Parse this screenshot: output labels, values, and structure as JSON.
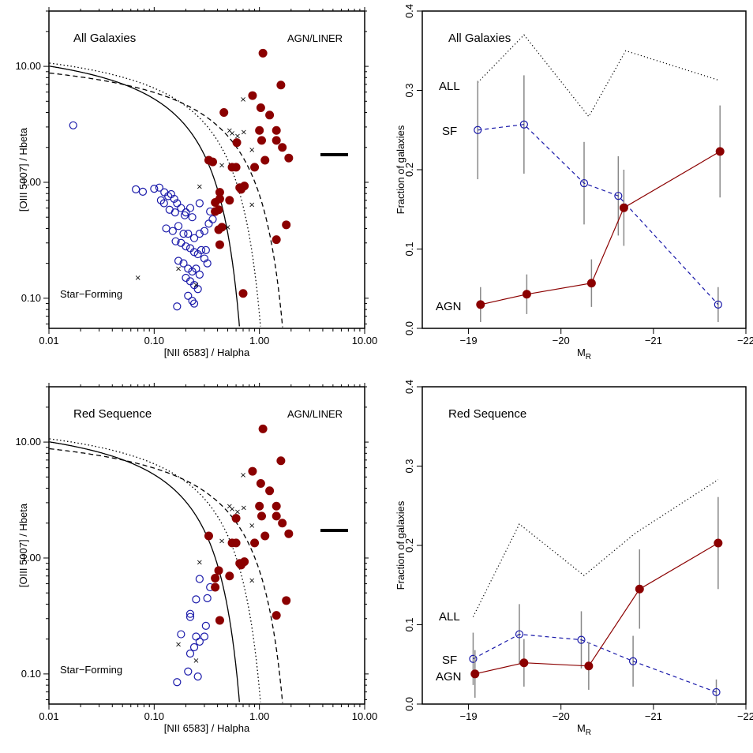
{
  "chart_data": [
    {
      "type": "scatter",
      "title": "All Galaxies",
      "xlabel": "[NII 6583] / Halpha",
      "ylabel": "[OIII 5007] / Hbeta",
      "xscale": "log",
      "yscale": "log",
      "xlim": [
        0.01,
        10
      ],
      "ylim": [
        0.055,
        30
      ],
      "xticks": [
        "0.01",
        "0.10",
        "1.00",
        "10.00"
      ],
      "yticks": [
        "0.10",
        "1.00",
        "10.00"
      ],
      "annotations": [
        "AGN/LINER",
        "Star−Forming"
      ],
      "series": [
        {
          "name": "SF",
          "marker": "open-circle",
          "color": "#1a1aaa",
          "points": [
            [
              0.017,
              3.1
            ],
            [
              0.067,
              0.87
            ],
            [
              0.078,
              0.83
            ],
            [
              0.1,
              0.88
            ],
            [
              0.112,
              0.9
            ],
            [
              0.125,
              0.82
            ],
            [
              0.136,
              0.76
            ],
            [
              0.116,
              0.7
            ],
            [
              0.124,
              0.66
            ],
            [
              0.145,
              0.79
            ],
            [
              0.155,
              0.72
            ],
            [
              0.165,
              0.66
            ],
            [
              0.14,
              0.58
            ],
            [
              0.158,
              0.55
            ],
            [
              0.18,
              0.6
            ],
            [
              0.2,
              0.55
            ],
            [
              0.23,
              0.5
            ],
            [
              0.22,
              0.6
            ],
            [
              0.195,
              0.52
            ],
            [
              0.13,
              0.4
            ],
            [
              0.15,
              0.38
            ],
            [
              0.17,
              0.42
            ],
            [
              0.19,
              0.36
            ],
            [
              0.21,
              0.36
            ],
            [
              0.24,
              0.33
            ],
            [
              0.27,
              0.36
            ],
            [
              0.3,
              0.38
            ],
            [
              0.33,
              0.44
            ],
            [
              0.36,
              0.48
            ],
            [
              0.16,
              0.31
            ],
            [
              0.18,
              0.3
            ],
            [
              0.2,
              0.28
            ],
            [
              0.22,
              0.27
            ],
            [
              0.24,
              0.25
            ],
            [
              0.26,
              0.24
            ],
            [
              0.28,
              0.26
            ],
            [
              0.31,
              0.26
            ],
            [
              0.34,
              0.56
            ],
            [
              0.27,
              0.66
            ],
            [
              0.17,
              0.21
            ],
            [
              0.19,
              0.2
            ],
            [
              0.21,
              0.18
            ],
            [
              0.23,
              0.17
            ],
            [
              0.25,
              0.18
            ],
            [
              0.27,
              0.16
            ],
            [
              0.2,
              0.15
            ],
            [
              0.22,
              0.14
            ],
            [
              0.24,
              0.13
            ],
            [
              0.26,
              0.12
            ],
            [
              0.21,
              0.105
            ],
            [
              0.23,
              0.095
            ],
            [
              0.24,
              0.09
            ],
            [
              0.165,
              0.085
            ],
            [
              0.3,
              0.22
            ],
            [
              0.32,
              0.2
            ]
          ]
        },
        {
          "name": "AGN",
          "marker": "filled-circle",
          "color": "#8b0000",
          "points": [
            [
              0.33,
              1.55
            ],
            [
              0.36,
              1.5
            ],
            [
              0.38,
              0.67
            ],
            [
              0.41,
              0.58
            ],
            [
              0.38,
              0.56
            ],
            [
              0.42,
              0.72
            ],
            [
              0.42,
              0.82
            ],
            [
              0.41,
              0.39
            ],
            [
              0.44,
              0.41
            ],
            [
              0.42,
              0.29
            ],
            [
              0.46,
              4.0
            ],
            [
              0.52,
              0.7
            ],
            [
              0.55,
              1.35
            ],
            [
              0.6,
              1.35
            ],
            [
              0.61,
              2.2
            ],
            [
              0.65,
              0.9
            ],
            [
              0.67,
              0.87
            ],
            [
              0.72,
              0.93
            ],
            [
              0.86,
              5.6
            ],
            [
              0.9,
              1.35
            ],
            [
              1.0,
              2.8
            ],
            [
              1.03,
              4.4
            ],
            [
              1.05,
              2.3
            ],
            [
              1.13,
              1.55
            ],
            [
              1.08,
              13.0
            ],
            [
              1.25,
              3.8
            ],
            [
              1.45,
              2.3
            ],
            [
              1.45,
              2.8
            ],
            [
              1.45,
              0.32
            ],
            [
              1.6,
              6.9
            ],
            [
              1.65,
              2.0
            ],
            [
              1.8,
              0.43
            ],
            [
              1.9,
              1.62
            ],
            [
              0.7,
              0.11
            ]
          ]
        },
        {
          "name": "",
          "marker": "cross",
          "color": "#000000",
          "points": [
            [
              0.07,
              0.15
            ],
            [
              0.17,
              0.18
            ],
            [
              0.25,
              0.13
            ],
            [
              0.27,
              0.92
            ],
            [
              0.44,
              1.4
            ],
            [
              0.5,
              0.41
            ],
            [
              0.52,
              2.8
            ],
            [
              0.55,
              2.65
            ],
            [
              0.62,
              2.5
            ],
            [
              0.71,
              2.7
            ],
            [
              0.7,
              5.2
            ],
            [
              0.85,
              1.9
            ],
            [
              0.85,
              0.64
            ]
          ]
        }
      ],
      "curves": [
        "solid",
        "dashed",
        "dotted"
      ]
    },
    {
      "type": "line",
      "title": "All Galaxies",
      "xlabel": "M_R",
      "ylabel": "Fraction of galaxies",
      "xlim": [
        -18.5,
        -22
      ],
      "ylim": [
        0,
        0.4
      ],
      "xticks": [
        "−19",
        "−20",
        "−21",
        "−22"
      ],
      "yticks": [
        "0.0",
        "0.1",
        "0.2",
        "0.3",
        "0.4"
      ],
      "series": [
        {
          "name": "ALL",
          "style": "dotted",
          "color": "#000000",
          "x": [
            -19.1,
            -19.6,
            -20.3,
            -20.7,
            -21.7
          ],
          "y": [
            0.31,
            0.37,
            0.267,
            0.35,
            0.313
          ]
        },
        {
          "name": "SF",
          "style": "dashed",
          "color": "#1a1aaa",
          "marker": "open-circle",
          "x": [
            -19.1,
            -19.6,
            -20.25,
            -20.62,
            -21.7
          ],
          "y": [
            0.25,
            0.257,
            0.183,
            0.167,
            0.03
          ],
          "err": [
            0.062,
            0.062,
            0.052,
            0.05,
            0.022
          ]
        },
        {
          "name": "AGN",
          "style": "solid",
          "color": "#8b0000",
          "marker": "filled-circle",
          "x": [
            -19.13,
            -19.63,
            -20.33,
            -20.68,
            -21.72
          ],
          "y": [
            0.03,
            0.043,
            0.057,
            0.152,
            0.223
          ],
          "err": [
            0.022,
            0.025,
            0.03,
            0.048,
            0.058
          ]
        }
      ]
    },
    {
      "type": "scatter",
      "title": "Red Sequence",
      "xlabel": "[NII 6583] / Halpha",
      "ylabel": "[OIII 5007] / Hbeta",
      "xscale": "log",
      "yscale": "log",
      "xlim": [
        0.01,
        10
      ],
      "ylim": [
        0.055,
        30
      ],
      "xticks": [
        "0.01",
        "0.10",
        "1.00",
        "10.00"
      ],
      "yticks": [
        "0.10",
        "1.00",
        "10.00"
      ],
      "annotations": [
        "AGN/LINER",
        "Star−Forming"
      ],
      "series": [
        {
          "name": "SF",
          "marker": "open-circle",
          "color": "#1a1aaa",
          "points": [
            [
              0.27,
              0.66
            ],
            [
              0.32,
              0.45
            ],
            [
              0.34,
              0.56
            ],
            [
              0.22,
              0.33
            ],
            [
              0.22,
              0.31
            ],
            [
              0.25,
              0.44
            ],
            [
              0.18,
              0.22
            ],
            [
              0.25,
              0.21
            ],
            [
              0.27,
              0.19
            ],
            [
              0.24,
              0.17
            ],
            [
              0.31,
              0.26
            ],
            [
              0.3,
              0.21
            ],
            [
              0.22,
              0.15
            ],
            [
              0.21,
              0.105
            ],
            [
              0.26,
              0.095
            ],
            [
              0.165,
              0.085
            ]
          ]
        },
        {
          "name": "AGN",
          "marker": "filled-circle",
          "color": "#8b0000",
          "points": [
            [
              0.33,
              1.55
            ],
            [
              0.38,
              0.67
            ],
            [
              0.38,
              0.56
            ],
            [
              0.41,
              0.78
            ],
            [
              0.42,
              0.29
            ],
            [
              0.52,
              0.7
            ],
            [
              0.55,
              1.35
            ],
            [
              0.6,
              2.2
            ],
            [
              0.6,
              1.35
            ],
            [
              0.65,
              0.9
            ],
            [
              0.67,
              0.87
            ],
            [
              0.72,
              0.93
            ],
            [
              0.86,
              5.6
            ],
            [
              0.9,
              1.35
            ],
            [
              1.0,
              2.8
            ],
            [
              1.03,
              4.4
            ],
            [
              1.05,
              2.3
            ],
            [
              1.13,
              1.55
            ],
            [
              1.08,
              13.0
            ],
            [
              1.25,
              3.8
            ],
            [
              1.45,
              2.3
            ],
            [
              1.45,
              2.8
            ],
            [
              1.45,
              0.32
            ],
            [
              1.6,
              6.9
            ],
            [
              1.65,
              2.0
            ],
            [
              1.8,
              0.43
            ],
            [
              1.9,
              1.62
            ]
          ]
        },
        {
          "name": "",
          "marker": "cross",
          "color": "#000000",
          "points": [
            [
              0.17,
              0.18
            ],
            [
              0.25,
              0.13
            ],
            [
              0.27,
              0.92
            ],
            [
              0.44,
              1.4
            ],
            [
              0.52,
              2.8
            ],
            [
              0.55,
              2.65
            ],
            [
              0.62,
              2.5
            ],
            [
              0.71,
              2.7
            ],
            [
              0.7,
              5.2
            ],
            [
              0.85,
              1.9
            ],
            [
              0.85,
              0.64
            ]
          ]
        }
      ],
      "curves": [
        "solid",
        "dashed",
        "dotted"
      ]
    },
    {
      "type": "line",
      "title": "Red Sequence",
      "xlabel": "M_R",
      "ylabel": "Fraction of galaxies",
      "xlim": [
        -18.5,
        -22
      ],
      "ylim": [
        0,
        0.4
      ],
      "xticks": [
        "−19",
        "−20",
        "−21",
        "−22"
      ],
      "yticks": [
        "0.0",
        "0.1",
        "0.2",
        "0.3",
        "0.4"
      ],
      "series": [
        {
          "name": "ALL",
          "style": "dotted",
          "color": "#000000",
          "x": [
            -19.05,
            -19.55,
            -20.25,
            -20.8,
            -21.7
          ],
          "y": [
            0.11,
            0.227,
            0.162,
            0.215,
            0.283
          ]
        },
        {
          "name": "SF",
          "style": "dashed",
          "color": "#1a1aaa",
          "marker": "open-circle",
          "x": [
            -19.05,
            -19.55,
            -20.22,
            -20.78,
            -21.68
          ],
          "y": [
            0.057,
            0.088,
            0.081,
            0.054,
            0.015
          ],
          "err": [
            0.033,
            0.038,
            0.036,
            0.032,
            0.016
          ]
        },
        {
          "name": "AGN",
          "style": "solid",
          "color": "#8b0000",
          "marker": "filled-circle",
          "x": [
            -19.07,
            -19.6,
            -20.3,
            -20.85,
            -21.7
          ],
          "y": [
            0.038,
            0.052,
            0.048,
            0.145,
            0.203
          ],
          "err": [
            0.03,
            0.03,
            0.03,
            0.05,
            0.058
          ]
        }
      ]
    }
  ],
  "labels": {
    "p1": {
      "title": "All Galaxies",
      "agn": "AGN/LINER",
      "sf": "Star−Forming",
      "xlabel": "[NII 6583] / Halpha",
      "ylabel": "[OIII 5007] / Hbeta"
    },
    "p2": {
      "title": "All Galaxies",
      "all": "ALL",
      "sf": "SF",
      "agn": "AGN",
      "ylabel": "Fraction of galaxies",
      "xlabel_main": "M",
      "xlabel_sub": "R"
    },
    "p3": {
      "title": "Red Sequence",
      "agn": "AGN/LINER",
      "sf": "Star−Forming",
      "xlabel": "[NII 6583] / Halpha",
      "ylabel": "[OIII 5007] / Hbeta"
    },
    "p4": {
      "title": "Red Sequence",
      "all": "ALL",
      "sf": "SF",
      "agn": "AGN",
      "ylabel": "Fraction of galaxies",
      "xlabel_main": "M",
      "xlabel_sub": "R"
    }
  }
}
